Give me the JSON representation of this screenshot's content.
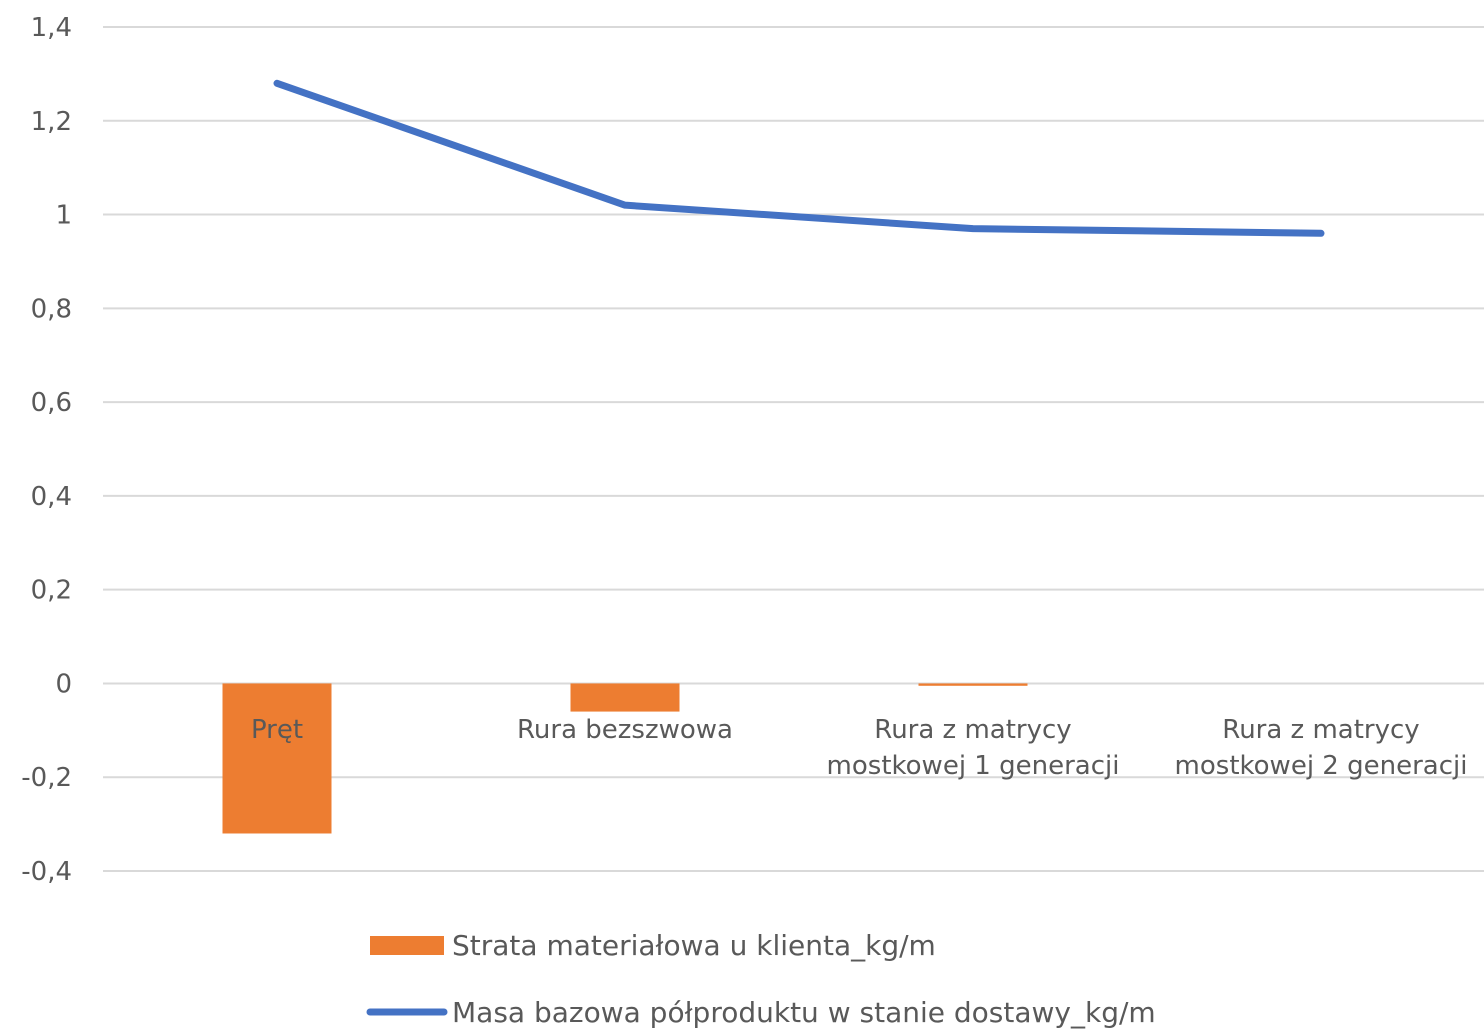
{
  "chart_data": {
    "type": "bar",
    "categories": [
      [
        "Pręt"
      ],
      [
        "Rura bezszwowa"
      ],
      [
        "Rura z matrycy",
        "mostkowej 1 generacji"
      ],
      [
        "Rura z matrycy",
        "mostkowej 2 generacji"
      ]
    ],
    "series": [
      {
        "name": "Strata materiałowa u klienta_kg/m",
        "type": "bar",
        "color": "#ED7D31",
        "values": [
          -0.32,
          -0.06,
          -0.005,
          0
        ]
      },
      {
        "name": "Masa bazowa półproduktu w stanie dostawy_kg/m",
        "type": "line",
        "color": "#4472C4",
        "values": [
          1.28,
          1.02,
          0.97,
          0.96
        ]
      }
    ],
    "ylim": [
      -0.4,
      1.4
    ],
    "yticks": [
      -0.4,
      -0.2,
      0,
      0.2,
      0.4,
      0.6,
      0.8,
      1,
      1.2,
      1.4
    ],
    "ytick_labels": [
      "-0,4",
      "-0,2",
      "0",
      "0,2",
      "0,4",
      "0,6",
      "0,8",
      "1",
      "1,2",
      "1,4"
    ],
    "grid": true,
    "legend_position": "bottom"
  }
}
